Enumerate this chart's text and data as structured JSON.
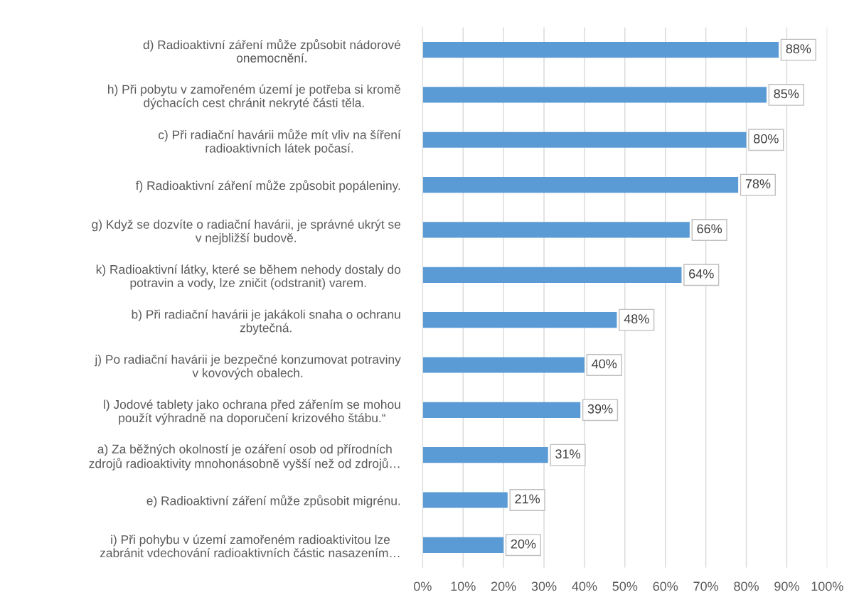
{
  "chart_data": {
    "type": "bar",
    "orientation": "horizontal",
    "categories": [
      "d) Radioaktivní záření může způsobit nádorové\nonemocnění.",
      "h) Při pobytu v zamořeném území je potřeba si kromě\ndýchacích cest chránit nekryté části těla.",
      "c) Při radiační havárii může mít vliv na šíření\nradioaktivních látek počasí.",
      "f) Radioaktivní záření může způsobit popáleniny.",
      "g) Když se dozvíte o radiační havárii, je správné ukrýt se\nv nejbližší budově.",
      "k) Radioaktivní látky, které se během nehody dostaly do\npotravin a vody, lze zničit (odstranit) varem.",
      "b) Při radiační havárii je jakákoli snaha o ochranu\nzbytečná.",
      "j) Po radiační havárii je bezpečné konzumovat potraviny\nv kovových obalech.",
      "l) Jodové tablety jako ochrana před zářením se mohou\npoužít výhradně na doporučení krizového štábu.“",
      "a) Za běžných okolností je ozáření osob od přírodních\nzdrojů radioaktivity mnohonásobně vyšší než od zdrojů…",
      "e) Radioaktivní záření může způsobit migrénu.",
      "i) Při pohybu v území zamořeném radioaktivitou lze\nzabránit vdechování radioaktivních částic nasazením…"
    ],
    "values": [
      88,
      85,
      80,
      78,
      66,
      64,
      48,
      40,
      39,
      31,
      21,
      20
    ],
    "value_labels": [
      "88%",
      "85%",
      "80%",
      "78%",
      "66%",
      "64%",
      "48%",
      "40%",
      "39%",
      "31%",
      "21%",
      "20%"
    ],
    "color": "#5b9bd5",
    "xlim": [
      0,
      100
    ],
    "xticks": [
      {
        "value": 0,
        "label": "0%"
      },
      {
        "value": 10,
        "label": "10%"
      },
      {
        "value": 20,
        "label": "20%"
      },
      {
        "value": 30,
        "label": "30%"
      },
      {
        "value": 40,
        "label": "40%"
      },
      {
        "value": 50,
        "label": "50%"
      },
      {
        "value": 60,
        "label": "60%"
      },
      {
        "value": 70,
        "label": "70%"
      },
      {
        "value": 80,
        "label": "80%"
      },
      {
        "value": 90,
        "label": "90%"
      },
      {
        "value": 100,
        "label": "100%"
      }
    ],
    "grid": "x"
  }
}
